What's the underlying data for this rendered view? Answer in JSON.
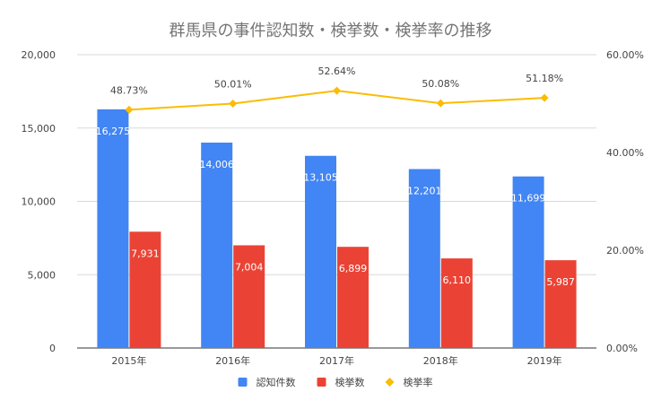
{
  "chart_data": {
    "type": "bar",
    "title": "群馬県の事件認知数・検挙数・検挙率の推移",
    "categories": [
      "2015年",
      "2016年",
      "2017年",
      "2018年",
      "2019年"
    ],
    "series": [
      {
        "name": "認知件数",
        "kind": "bar",
        "axis": "left",
        "color": "#4285F4",
        "values": [
          16275,
          14006,
          13105,
          12201,
          11699
        ],
        "labels": [
          "16,275",
          "14,006",
          "13,105",
          "12,201",
          "11,699"
        ]
      },
      {
        "name": "検挙数",
        "kind": "bar",
        "axis": "left",
        "color": "#EA4335",
        "values": [
          7931,
          7004,
          6899,
          6110,
          5987
        ],
        "labels": [
          "7,931",
          "7,004",
          "6,899",
          "6,110",
          "5,987"
        ]
      },
      {
        "name": "検挙率",
        "kind": "line",
        "axis": "right",
        "color": "#FBBC04",
        "values": [
          48.73,
          50.01,
          52.64,
          50.08,
          51.18
        ],
        "labels": [
          "48.73%",
          "50.01%",
          "52.64%",
          "50.08%",
          "51.18%"
        ]
      }
    ],
    "y_left": {
      "ylim": [
        0,
        20000
      ],
      "ticks": [
        0,
        5000,
        10000,
        15000,
        20000
      ],
      "tick_labels": [
        "0",
        "5,000",
        "10,000",
        "15,000",
        "20,000"
      ]
    },
    "y_right": {
      "ylim": [
        0,
        60
      ],
      "ticks": [
        0,
        20,
        40,
        60
      ],
      "tick_labels": [
        "0.00%",
        "20.00%",
        "40.00%",
        "60.00%"
      ]
    },
    "grid": true,
    "legend": "bottom"
  }
}
